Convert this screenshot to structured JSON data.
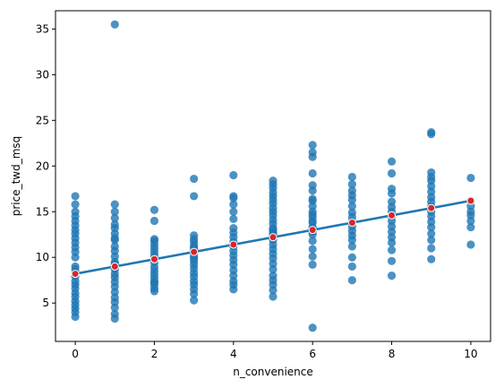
{
  "chart_data": {
    "type": "scatter",
    "xlabel": "n_convenience",
    "ylabel": "price_twd_msq",
    "xlim": [
      -0.5,
      10.5
    ],
    "ylim": [
      0.8,
      37
    ],
    "x_ticks": [
      0,
      2,
      4,
      6,
      8,
      10
    ],
    "y_ticks": [
      5,
      10,
      15,
      20,
      25,
      30,
      35
    ],
    "grid": false,
    "colors": {
      "points": "#1f77b4",
      "regression_line": "#1f77b4",
      "prediction_marker_fill": "#d62728",
      "prediction_marker_edge": "#ffffff"
    },
    "series": [
      {
        "kind": "points",
        "x": [
          0,
          0,
          0,
          0,
          0,
          0,
          0,
          0,
          0,
          0,
          0,
          0,
          0,
          0,
          0,
          0,
          0,
          0,
          0,
          0,
          0,
          0,
          0,
          0,
          0,
          0,
          0,
          1,
          1,
          1,
          1,
          1,
          1,
          1,
          1,
          1,
          1,
          1,
          1,
          1,
          1,
          1,
          1,
          1,
          1,
          1,
          1,
          1,
          1,
          1,
          1,
          1,
          1,
          1,
          2,
          2,
          2,
          2,
          2,
          2,
          2,
          2,
          2,
          2,
          2,
          2,
          2,
          2,
          2,
          2,
          2,
          2,
          2,
          3,
          3,
          3,
          3,
          3,
          3,
          3,
          3,
          3,
          3,
          3,
          3,
          3,
          3,
          3,
          3,
          3,
          3,
          3,
          3,
          3,
          3,
          4,
          4,
          4,
          4,
          4,
          4,
          4,
          4,
          4,
          4,
          4,
          4,
          4,
          4,
          4,
          4,
          4,
          4,
          4,
          4,
          4,
          5,
          5,
          5,
          5,
          5,
          5,
          5,
          5,
          5,
          5,
          5,
          5,
          5,
          5,
          5,
          5,
          5,
          5,
          5,
          5,
          5,
          5,
          5,
          5,
          5,
          5,
          5,
          5,
          5,
          5,
          6,
          6,
          6,
          6,
          6,
          6,
          6,
          6,
          6,
          6,
          6,
          6,
          6,
          6,
          6,
          6,
          6,
          6,
          6,
          6,
          6,
          6,
          6,
          7,
          7,
          7,
          7,
          7,
          7,
          7,
          7,
          7,
          7,
          7,
          7,
          7,
          7,
          7,
          7,
          7,
          8,
          8,
          8,
          8,
          8,
          8,
          8,
          8,
          8,
          8,
          8,
          8,
          8,
          8,
          8,
          8,
          9,
          9,
          9,
          9,
          9,
          9,
          9,
          9,
          9,
          9,
          9,
          9,
          9,
          9,
          9,
          9,
          9,
          9,
          10,
          10,
          10,
          10,
          10,
          10,
          10,
          10
        ],
        "y": [
          3.5,
          4.0,
          4.4,
          4.8,
          5.2,
          5.7,
          6.1,
          6.6,
          7.0,
          7.4,
          7.9,
          8.3,
          8.7,
          9.0,
          10.0,
          10.6,
          11.1,
          11.6,
          12.1,
          12.6,
          13.0,
          13.5,
          14.0,
          14.5,
          15.0,
          15.8,
          16.7,
          3.3,
          3.8,
          4.5,
          5.1,
          5.6,
          6.2,
          6.8,
          7.3,
          7.8,
          8.2,
          8.7,
          9.1,
          9.5,
          10.1,
          10.7,
          11.2,
          11.9,
          12.6,
          13.2,
          13.6,
          14.3,
          15.0,
          15.8,
          8.9,
          9.3,
          12.1,
          35.5,
          6.3,
          6.6,
          7.0,
          7.3,
          7.7,
          8.1,
          8.5,
          8.9,
          9.4,
          9.8,
          10.2,
          10.6,
          11.0,
          11.4,
          11.8,
          12.0,
          14.0,
          15.2,
          7.3,
          5.3,
          6.0,
          6.5,
          7.0,
          7.4,
          7.9,
          8.3,
          8.8,
          9.2,
          9.6,
          10.1,
          10.5,
          10.9,
          11.3,
          11.7,
          12.0,
          12.4,
          16.7,
          18.6,
          9.9,
          10.6,
          11.1,
          6.5,
          7.0,
          7.4,
          8.0,
          8.6,
          9.2,
          9.7,
          10.2,
          10.7,
          11.2,
          11.7,
          12.2,
          12.7,
          13.2,
          14.2,
          15.0,
          15.8,
          16.5,
          16.7,
          19.0,
          11.4,
          5.7,
          6.4,
          7.0,
          7.5,
          8.0,
          8.7,
          9.3,
          9.9,
          10.4,
          10.9,
          11.4,
          11.9,
          12.4,
          12.8,
          13.2,
          13.7,
          14.1,
          14.6,
          15.0,
          15.4,
          15.9,
          16.3,
          16.7,
          17.1,
          17.6,
          18.0,
          18.4,
          12.1,
          12.6,
          13.0,
          2.3,
          9.2,
          10.1,
          10.9,
          11.8,
          12.5,
          13.2,
          13.8,
          14.4,
          15.0,
          15.6,
          16.2,
          16.4,
          17.3,
          17.9,
          19.2,
          21.0,
          21.5,
          22.3,
          12.8,
          13.3,
          14.0,
          14.7,
          7.5,
          9.0,
          10.0,
          11.2,
          11.9,
          12.4,
          12.9,
          13.4,
          13.9,
          14.4,
          14.9,
          15.6,
          16.3,
          16.8,
          17.3,
          18.0,
          18.8,
          8.0,
          9.6,
          10.8,
          11.6,
          12.2,
          12.8,
          13.4,
          14.0,
          14.5,
          15.0,
          15.5,
          16.1,
          17.0,
          17.5,
          19.2,
          20.5,
          9.8,
          11.0,
          11.9,
          12.6,
          13.3,
          13.9,
          14.5,
          15.0,
          15.6,
          16.1,
          16.6,
          17.2,
          17.8,
          18.4,
          18.8,
          19.3,
          23.5,
          23.7,
          11.4,
          13.3,
          14.0,
          14.6,
          15.0,
          15.6,
          16.2,
          18.7
        ]
      },
      {
        "kind": "regression_line",
        "x": [
          0,
          10
        ],
        "y": [
          8.2,
          16.2
        ]
      },
      {
        "kind": "prediction_markers",
        "x": [
          0,
          1,
          2,
          3,
          4,
          5,
          6,
          7,
          8,
          9,
          10
        ],
        "y": [
          8.2,
          9.0,
          9.8,
          10.6,
          11.4,
          12.2,
          13.0,
          13.8,
          14.6,
          15.4,
          16.2
        ]
      }
    ]
  }
}
